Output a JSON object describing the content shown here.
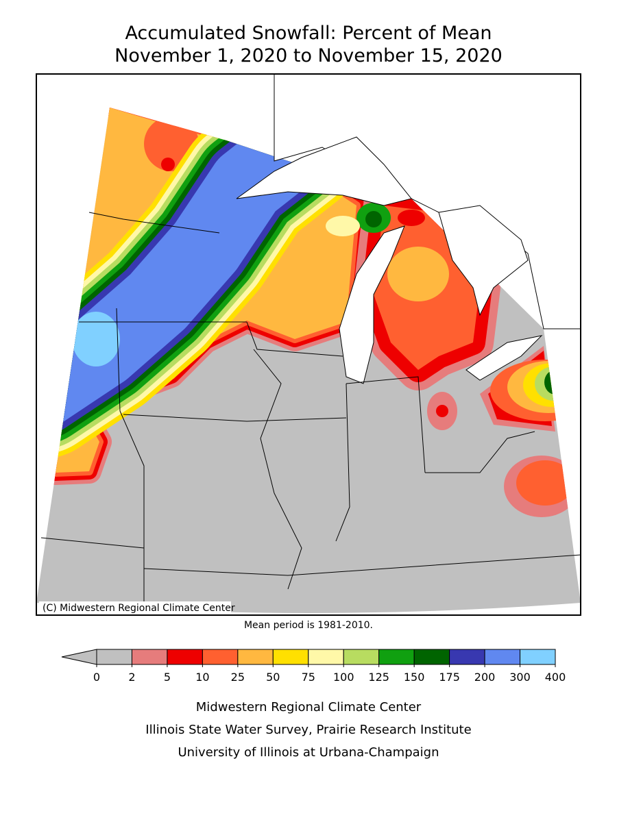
{
  "header": {
    "title_lines": [
      "Accumulated Snowfall: Percent of Mean",
      "November 1, 2020 to November 15, 2020"
    ]
  },
  "map": {
    "copyright": "(C) Midwestern Regional Climate Center",
    "note": "Mean period is 1981-2010."
  },
  "legend": {
    "ticks": [
      0,
      2,
      5,
      10,
      25,
      50,
      75,
      100,
      125,
      150,
      175,
      200,
      300,
      400
    ],
    "colors": [
      "#c0c0c0",
      "#e67c7c",
      "#ee0000",
      "#ff6030",
      "#ffb840",
      "#ffe000",
      "#fff8a8",
      "#b8dc60",
      "#10a010",
      "#006400",
      "#3838b0",
      "#6088f0",
      "#80d0ff"
    ]
  },
  "footer": {
    "lines": [
      "Midwestern Regional Climate Center",
      "Illinois State Water Survey, Prairie Research Institute",
      "University of Illinois at Urbana-Champaign"
    ]
  }
}
